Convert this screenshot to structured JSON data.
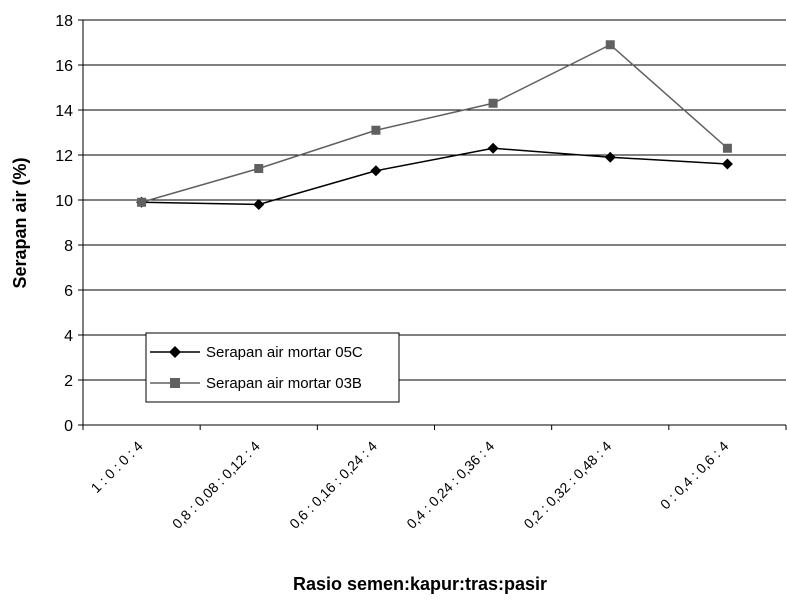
{
  "chart_data": {
    "type": "line",
    "categories": [
      "1  :  0    :  0    :  4",
      "0,8 : 0,08 : 0,12 : 4",
      "0,6 : 0,16 : 0,24 : 4",
      "0,4 : 0,24 : 0,36 : 4",
      "0,2 : 0,32 : 0,48 : 4",
      "0  : 0,4 : 0,6  : 4"
    ],
    "series": [
      {
        "name": "Serapan air  mortar 05C",
        "values": [
          9.9,
          9.8,
          11.3,
          12.3,
          11.9,
          11.6
        ],
        "color": "#000000",
        "marker": "diamond"
      },
      {
        "name": "Serapan air  mortar 03B",
        "values": [
          9.9,
          11.4,
          13.1,
          14.3,
          16.9,
          12.3
        ],
        "color": "#606060",
        "marker": "square"
      }
    ],
    "xlabel": "Rasio semen:kapur:tras:pasir",
    "ylabel": "Serapan air (%)",
    "ylim": [
      0,
      18
    ],
    "yticks": [
      0,
      2,
      4,
      6,
      8,
      10,
      12,
      14,
      16,
      18
    ],
    "grid": true,
    "legend_position": "lower-left"
  }
}
